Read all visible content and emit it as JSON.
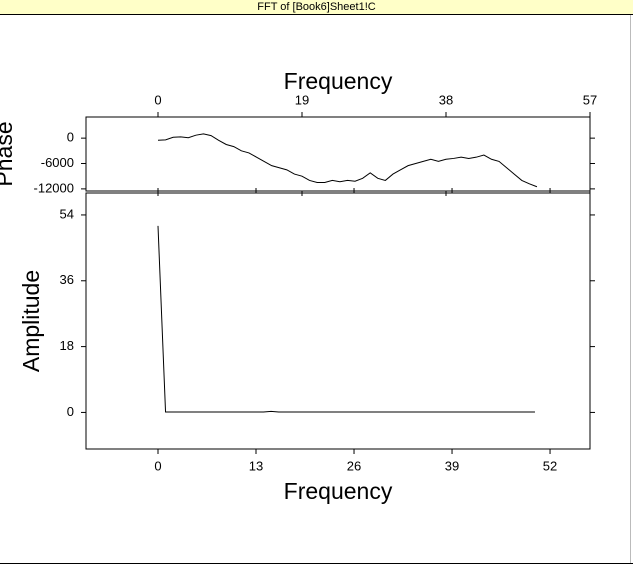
{
  "window": {
    "title": "FFT of [Book6]Sheet1!C"
  },
  "chart_data": [
    {
      "type": "line",
      "xlabel": "Frequency",
      "ylabel": "Phase",
      "xaxis_position": "top",
      "xlim": [
        -9.5,
        57
      ],
      "xticks": [
        0,
        19,
        38,
        57
      ],
      "ylim": [
        -12500,
        5000
      ],
      "yticks": [
        0,
        -6000,
        -12000
      ],
      "series": [
        {
          "name": "Phase",
          "color": "#000000",
          "x": [
            0,
            1,
            2,
            3,
            4,
            5,
            6,
            7,
            8,
            9,
            10,
            11,
            12,
            13,
            14,
            15,
            16,
            17,
            18,
            19,
            20,
            21,
            22,
            23,
            24,
            25,
            26,
            27,
            28,
            29,
            30,
            31,
            32,
            33,
            34,
            35,
            36,
            37,
            38,
            39,
            40,
            41,
            42,
            43,
            44,
            45,
            46,
            47,
            48,
            49,
            50
          ],
          "values": [
            -500,
            -400,
            200,
            300,
            100,
            700,
            1000,
            600,
            -500,
            -1500,
            -2000,
            -3000,
            -3500,
            -4500,
            -5500,
            -6500,
            -7000,
            -7500,
            -8500,
            -9000,
            -10000,
            -10500,
            -10500,
            -10000,
            -10300,
            -10000,
            -10200,
            -9500,
            -8200,
            -9500,
            -10000,
            -8500,
            -7500,
            -6500,
            -6000,
            -5500,
            -5000,
            -5500,
            -5000,
            -4800,
            -4500,
            -4800,
            -4500,
            -4000,
            -5000,
            -5500,
            -7000,
            -8500,
            -10000,
            -10800,
            -11500
          ]
        }
      ]
    },
    {
      "type": "line",
      "xlabel": "Frequency",
      "ylabel": "Amplitude",
      "xaxis_position": "bottom",
      "xlim": [
        -9.55,
        57.3
      ],
      "xticks": [
        0,
        13,
        26,
        39,
        52
      ],
      "ylim": [
        -10,
        60
      ],
      "yticks": [
        0,
        18,
        36,
        54
      ],
      "series": [
        {
          "name": "Amplitude",
          "color": "#000000",
          "x": [
            0,
            1,
            2,
            3,
            4,
            5,
            6,
            7,
            8,
            9,
            10,
            11,
            12,
            13,
            14,
            15,
            16,
            17,
            18,
            19,
            20,
            21,
            22,
            23,
            24,
            25,
            26,
            27,
            28,
            29,
            30,
            31,
            32,
            33,
            34,
            35,
            36,
            37,
            38,
            39,
            40,
            41,
            42,
            43,
            44,
            45,
            46,
            47,
            48,
            49,
            50
          ],
          "values": [
            51,
            0.1,
            0.1,
            0.1,
            0.1,
            0.1,
            0.1,
            0.1,
            0.1,
            0.1,
            0.1,
            0.1,
            0.1,
            0.1,
            0.1,
            0.3,
            0.1,
            0.1,
            0.1,
            0.1,
            0.1,
            0.1,
            0.1,
            0.1,
            0.1,
            0.1,
            0.1,
            0.1,
            0.1,
            0.1,
            0.1,
            0.1,
            0.1,
            0.1,
            0.1,
            0.1,
            0.1,
            0.1,
            0.1,
            0.1,
            0.1,
            0.1,
            0.1,
            0.1,
            0.1,
            0.1,
            0.1,
            0.1,
            0.1,
            0.1,
            0.1
          ]
        }
      ]
    }
  ]
}
